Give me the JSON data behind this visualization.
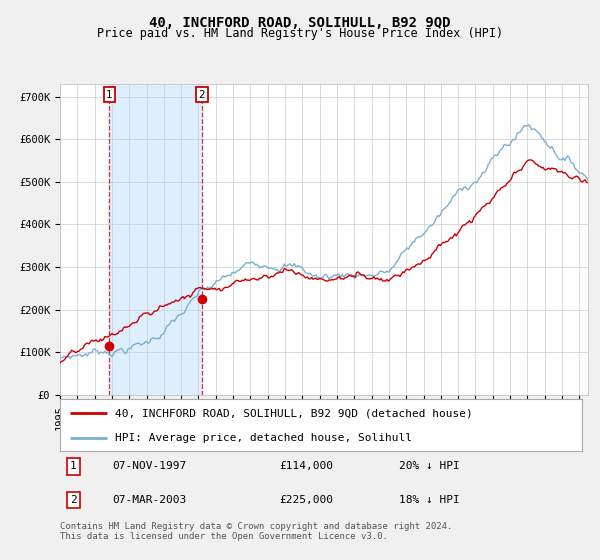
{
  "title": "40, INCHFORD ROAD, SOLIHULL, B92 9QD",
  "subtitle": "Price paid vs. HM Land Registry's House Price Index (HPI)",
  "ylabel_ticks": [
    "£0",
    "£100K",
    "£200K",
    "£300K",
    "£400K",
    "£500K",
    "£600K",
    "£700K"
  ],
  "ytick_values": [
    0,
    100000,
    200000,
    300000,
    400000,
    500000,
    600000,
    700000
  ],
  "ylim": [
    0,
    730000
  ],
  "xlim_start": 1995.0,
  "xlim_end": 2025.5,
  "red_line_color": "#cc0000",
  "blue_line_color": "#7ab0d4",
  "shade_color": "#ddeeff",
  "grid_color": "#cccccc",
  "background_color": "#f0f0f0",
  "plot_bg_color": "#ffffff",
  "transaction1_x": 1997.856,
  "transaction1_y": 114000,
  "transaction2_x": 2003.18,
  "transaction2_y": 225000,
  "legend_red_label": "40, INCHFORD ROAD, SOLIHULL, B92 9QD (detached house)",
  "legend_blue_label": "HPI: Average price, detached house, Solihull",
  "table_rows": [
    {
      "num": "1",
      "date": "07-NOV-1997",
      "price": "£114,000",
      "hpi": "20% ↓ HPI"
    },
    {
      "num": "2",
      "date": "07-MAR-2003",
      "price": "£225,000",
      "hpi": "18% ↓ HPI"
    }
  ],
  "footnote": "Contains HM Land Registry data © Crown copyright and database right 2024.\nThis data is licensed under the Open Government Licence v3.0.",
  "title_fontsize": 10,
  "subtitle_fontsize": 8.5,
  "tick_fontsize": 7.5,
  "legend_fontsize": 8,
  "table_fontsize": 8,
  "footnote_fontsize": 6.5
}
